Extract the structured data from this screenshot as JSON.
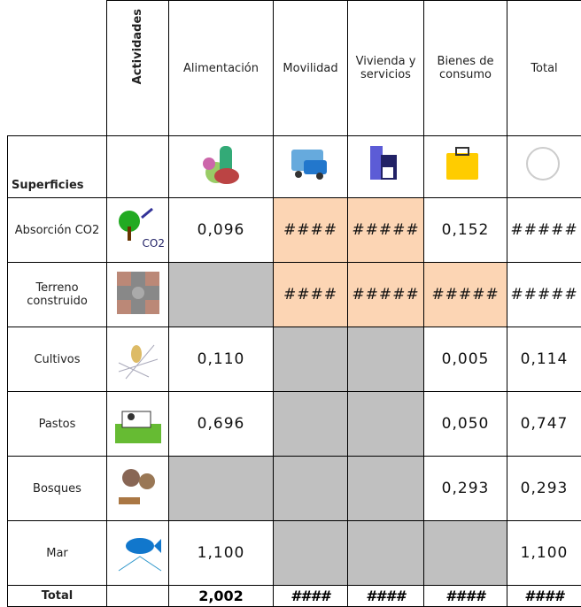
{
  "header": {
    "corner": "Actividades",
    "columns": [
      "Alimentación",
      "Movilidad",
      "Vivienda y servicios",
      "Bienes de consumo",
      "Total"
    ]
  },
  "row_header": "Superficies",
  "rows": [
    {
      "label": "Absorción CO2",
      "icon_text": "CO2",
      "cells": [
        "0,096",
        "####",
        "#####",
        "0,152",
        "#####"
      ]
    },
    {
      "label": "Terreno construido",
      "cells": [
        null,
        "####",
        "#####",
        "#####",
        "#####"
      ]
    },
    {
      "label": "Cultivos",
      "cells": [
        "0,110",
        null,
        null,
        "0,005",
        "0,114"
      ]
    },
    {
      "label": "Pastos",
      "cells": [
        "0,696",
        null,
        null,
        "0,050",
        "0,747"
      ]
    },
    {
      "label": "Bosques",
      "cells": [
        null,
        null,
        null,
        "0,293",
        "0,293"
      ]
    },
    {
      "label": "Mar",
      "cells": [
        "1,100",
        null,
        null,
        null,
        "1,100"
      ]
    }
  ],
  "total": {
    "label": "Total",
    "cells": [
      "2,002",
      "####",
      "####",
      "####",
      "####"
    ]
  }
}
